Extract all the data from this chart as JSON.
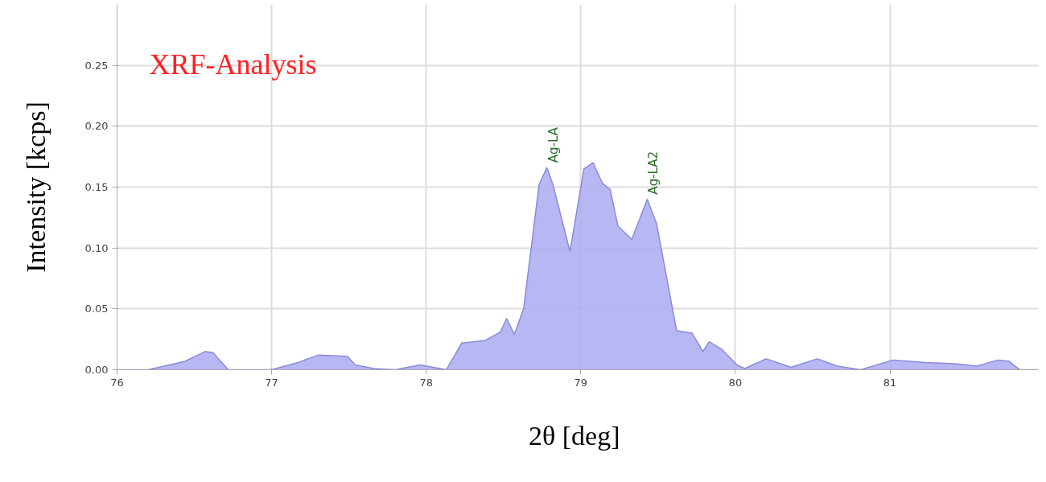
{
  "chart_data": {
    "type": "area",
    "title": "XRF-Analysis",
    "xlabel": "2θ  [deg]",
    "ylabel": "Intensity [kcps]",
    "series": [
      {
        "color": "#aaaaf2",
        "x": [
          76.0,
          76.2,
          76.44,
          76.57,
          76.62,
          76.72,
          77.0,
          77.17,
          77.3,
          77.49,
          77.54,
          77.66,
          77.8,
          77.92,
          77.96,
          78.13,
          78.23,
          78.38,
          78.48,
          78.52,
          78.57,
          78.63,
          78.73,
          78.78,
          78.82,
          78.93,
          79.02,
          79.08,
          79.14,
          79.19,
          79.24,
          79.33,
          79.43,
          79.49,
          79.62,
          79.72,
          79.79,
          79.83,
          79.91,
          80.01,
          80.06,
          80.2,
          80.36,
          80.53,
          80.66,
          80.81,
          81.02,
          81.23,
          81.42,
          81.56,
          81.7,
          81.77,
          81.84,
          81.96
        ],
        "values": [
          0.0,
          0.0,
          0.007,
          0.015,
          0.014,
          0.0,
          0.0,
          0.006,
          0.012,
          0.011,
          0.004,
          0.001,
          0.0,
          0.003,
          0.004,
          0.0,
          0.022,
          0.024,
          0.031,
          0.042,
          0.029,
          0.05,
          0.152,
          0.166,
          0.152,
          0.097,
          0.165,
          0.17,
          0.153,
          0.148,
          0.118,
          0.107,
          0.14,
          0.12,
          0.032,
          0.03,
          0.015,
          0.023,
          0.017,
          0.004,
          0.001,
          0.009,
          0.002,
          0.009,
          0.003,
          0.0,
          0.008,
          0.006,
          0.005,
          0.003,
          0.008,
          0.007,
          0.0,
          0.0
        ]
      }
    ],
    "annotations": [
      {
        "text": "Ag-LA",
        "x": 78.78,
        "y": 0.166
      },
      {
        "text": "Ag-LA2",
        "x": 79.43,
        "y": 0.14
      }
    ],
    "xlim": [
      76,
      81.96
    ],
    "ylim": [
      0,
      0.3
    ],
    "xticks": [
      76,
      77,
      78,
      79,
      80,
      81
    ],
    "yticks": [
      {
        "value": 0,
        "label": "0.00"
      },
      {
        "value": 0.05,
        "label": "0.05"
      },
      {
        "value": 0.1,
        "label": "0.10"
      },
      {
        "value": 0.15,
        "label": "0.15"
      },
      {
        "value": 0.2,
        "label": "0.20"
      },
      {
        "value": 0.25,
        "label": "0.25"
      }
    ],
    "grid": true
  }
}
